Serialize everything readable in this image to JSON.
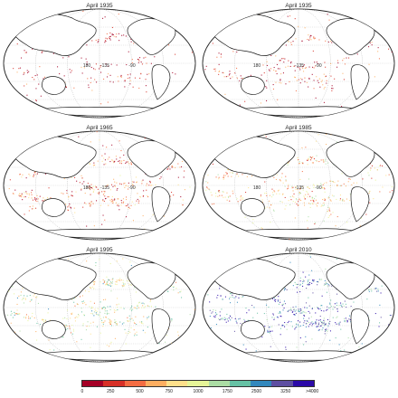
{
  "panels": [
    {
      "title": "April 1935",
      "level": 0.05,
      "density": 0.35
    },
    {
      "title": "April 1935",
      "level": 0.12,
      "density": 0.45
    },
    {
      "title": "April 1965",
      "level": 0.22,
      "density": 0.75
    },
    {
      "title": "April 1985",
      "level": 0.38,
      "density": 0.8
    },
    {
      "title": "April 1995",
      "level": 0.5,
      "density": 0.85
    },
    {
      "title": "April 2010",
      "level": 0.8,
      "density": 0.95
    }
  ],
  "grid_labels": {
    "top_row": [
      "180",
      "-135",
      "-90"
    ],
    "middle_row": [
      "180",
      "-135",
      "-90"
    ]
  },
  "colorbar": {
    "ticks": [
      "0",
      "250",
      "500",
      "750",
      "1000",
      "1750",
      "2500",
      "3250",
      ">4000"
    ],
    "colors": [
      "#a50026",
      "#d73027",
      "#f46d43",
      "#fdae61",
      "#fee08b",
      "#e6f598",
      "#abdda4",
      "#66c2a5",
      "#3288bd",
      "#5e4fa2",
      "#2b0aa8"
    ]
  }
}
